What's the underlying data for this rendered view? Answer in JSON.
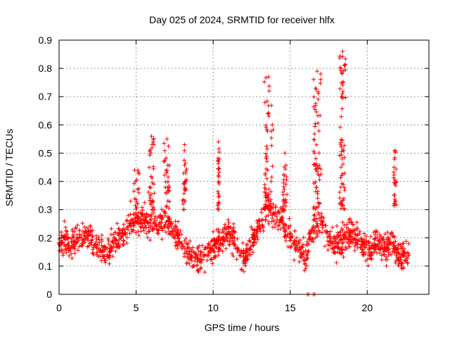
{
  "chart_data": {
    "type": "scatter",
    "title": "Day 025 of 2024, SRMTID for receiver hlfx",
    "xlabel": "GPS time / hours",
    "ylabel": "SRMTID / TECUs",
    "xlim": [
      0,
      24
    ],
    "ylim": [
      0,
      0.9
    ],
    "xticks": [
      0,
      5,
      10,
      15,
      20
    ],
    "xtick_labels": [
      "0",
      "5",
      "10",
      "15",
      "20"
    ],
    "yticks": [
      0,
      0.1,
      0.2,
      0.3,
      0.4,
      0.5,
      0.6,
      0.7,
      0.8,
      0.9
    ],
    "ytick_labels": [
      "0",
      "0.1",
      "0.2",
      "0.3",
      "0.4",
      "0.5",
      "0.6",
      "0.7",
      "0.8",
      "0.9"
    ],
    "grid": true,
    "marker": "+",
    "color": "#ff0000",
    "x_range_of_data": [
      0,
      22.7
    ],
    "baseline": [
      [
        0.0,
        0.18
      ],
      [
        0.3,
        0.2
      ],
      [
        0.8,
        0.17
      ],
      [
        1.5,
        0.22
      ],
      [
        2.0,
        0.2
      ],
      [
        3.0,
        0.15
      ],
      [
        4.0,
        0.2
      ],
      [
        5.0,
        0.27
      ],
      [
        6.0,
        0.25
      ],
      [
        7.0,
        0.26
      ],
      [
        8.0,
        0.18
      ],
      [
        8.5,
        0.14
      ],
      [
        9.0,
        0.12
      ],
      [
        9.5,
        0.14
      ],
      [
        10.0,
        0.17
      ],
      [
        11.0,
        0.22
      ],
      [
        12.0,
        0.13
      ],
      [
        12.5,
        0.18
      ],
      [
        13.0,
        0.24
      ],
      [
        13.5,
        0.32
      ],
      [
        14.0,
        0.28
      ],
      [
        14.5,
        0.27
      ],
      [
        15.0,
        0.2
      ],
      [
        15.5,
        0.18
      ],
      [
        16.0,
        0.13
      ],
      [
        16.5,
        0.24
      ],
      [
        17.0,
        0.26
      ],
      [
        17.5,
        0.2
      ],
      [
        18.0,
        0.17
      ],
      [
        19.0,
        0.22
      ],
      [
        20.0,
        0.16
      ],
      [
        20.5,
        0.18
      ],
      [
        21.0,
        0.16
      ],
      [
        21.5,
        0.19
      ],
      [
        22.0,
        0.14
      ],
      [
        22.7,
        0.14
      ]
    ],
    "bursts": [
      {
        "x": [
          13.3,
          13.9
        ],
        "y": [
          0.3,
          0.77
        ]
      },
      {
        "x": [
          14.5,
          14.8
        ],
        "y": [
          0.3,
          0.5
        ]
      },
      {
        "x": [
          16.5,
          17.0
        ],
        "y": [
          0.3,
          0.79
        ]
      },
      {
        "x": [
          18.2,
          18.6
        ],
        "y": [
          0.3,
          0.86
        ]
      },
      {
        "x": [
          21.7,
          21.9
        ],
        "y": [
          0.3,
          0.51
        ]
      },
      {
        "x": [
          10.3,
          10.4
        ],
        "y": [
          0.3,
          0.54
        ]
      },
      {
        "x": [
          5.8,
          6.2
        ],
        "y": [
          0.3,
          0.56
        ]
      },
      {
        "x": [
          6.8,
          7.2
        ],
        "y": [
          0.3,
          0.55
        ]
      },
      {
        "x": [
          8.0,
          8.3
        ],
        "y": [
          0.3,
          0.53
        ]
      },
      {
        "x": [
          4.6,
          5.2
        ],
        "y": [
          0.3,
          0.44
        ]
      }
    ],
    "zero_points": [
      {
        "x": 16.1,
        "y": 0
      },
      {
        "x": 16.2,
        "y": 0
      },
      {
        "x": 16.5,
        "y": 0
      },
      {
        "x": 16.6,
        "y": 0
      }
    ]
  }
}
